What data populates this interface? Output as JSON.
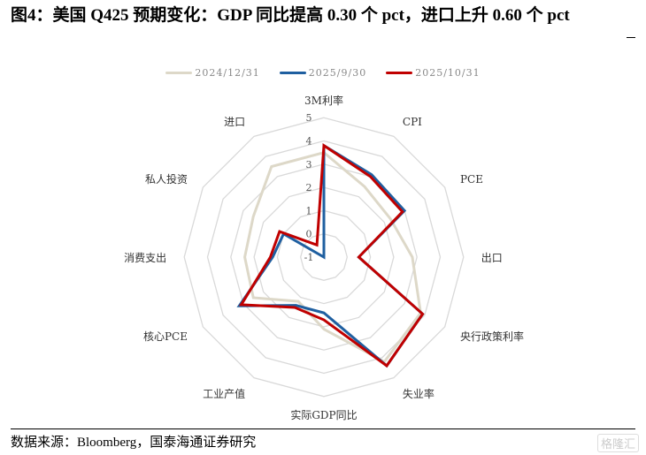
{
  "title": "图4：美国 Q425 预期变化：GDP 同比提高 0.30 个 pct，进口上升 0.60 个 pct",
  "source": "数据来源：Bloomberg，国泰海通证券研究",
  "watermark": "格隆汇",
  "chart_data": {
    "type": "radar",
    "title": "图4：美国 Q425 预期变化：GDP 同比提高 0.30 个 pct，进口上升 0.60 个 pct",
    "categories": [
      "3M利率",
      "CPI",
      "PCE",
      "出口",
      "央行政策利率",
      "失业率",
      "实际GDP同比",
      "工业产值",
      "核心PCE",
      "消费支出",
      "私人投资",
      "进口"
    ],
    "range": [
      -1,
      5
    ],
    "ticks": [
      "-1",
      "0",
      "1",
      "2",
      "3",
      "4",
      "5"
    ],
    "grid": true,
    "legend_position": "top",
    "series": [
      {
        "name": "2024/12/31",
        "color": "#ddd8c8",
        "values": [
          3.5,
          2.5,
          2.3,
          2.8,
          3.8,
          4.2,
          2.1,
          1.2,
          2.5,
          2.4,
          2.5,
          3.5
        ]
      },
      {
        "name": "2025/9/30",
        "color": "#1f5fa0",
        "values": [
          3.8,
          3.1,
          3.0,
          0.5,
          3.9,
          4.4,
          1.4,
          1.4,
          3.2,
          1.2,
          1.0,
          -1.0
        ]
      },
      {
        "name": "2025/10/31",
        "color": "#c00000",
        "values": [
          3.8,
          3.0,
          2.9,
          0.5,
          3.9,
          4.4,
          1.7,
          1.5,
          3.1,
          1.3,
          1.2,
          -0.4
        ]
      }
    ]
  }
}
